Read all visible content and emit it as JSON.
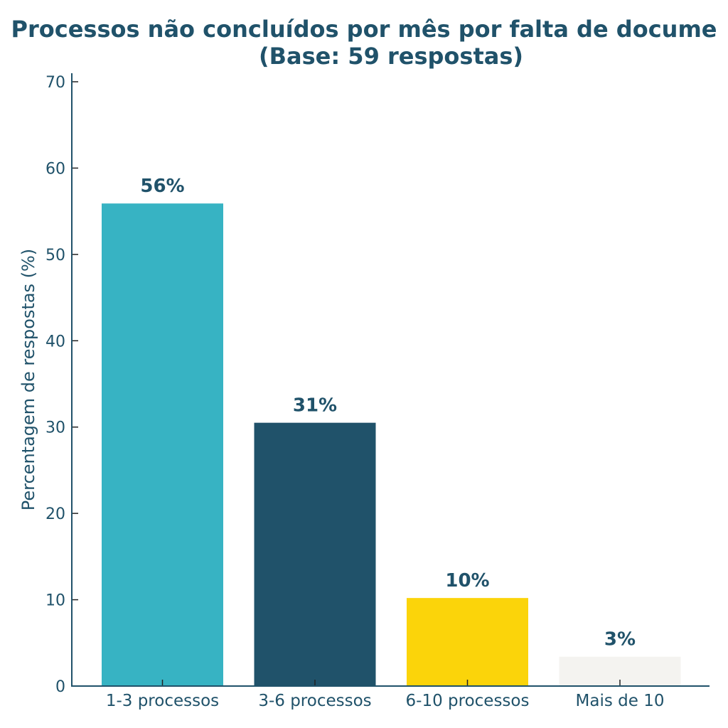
{
  "chart_data": {
    "type": "bar",
    "title_line1": "Processos não concluídos por mês por falta de docume",
    "title_line2": "(Base: 59 respostas)",
    "xlabel": "",
    "ylabel": "Percentagem de respostas (%)",
    "ylim": [
      0,
      70
    ],
    "yticks": [
      0,
      10,
      20,
      30,
      40,
      50,
      60,
      70
    ],
    "categories": [
      "1-3 processos",
      "3-6 processos",
      "6-10 processos",
      "Mais de 10"
    ],
    "values": [
      55.9,
      30.5,
      10.2,
      3.4
    ],
    "data_labels": [
      "56%",
      "31%",
      "10%",
      "3%"
    ],
    "colors": [
      "#37b3c3",
      "#20526a",
      "#fbd40a",
      "#f4f3f0"
    ],
    "grid": false,
    "legend": "none"
  }
}
